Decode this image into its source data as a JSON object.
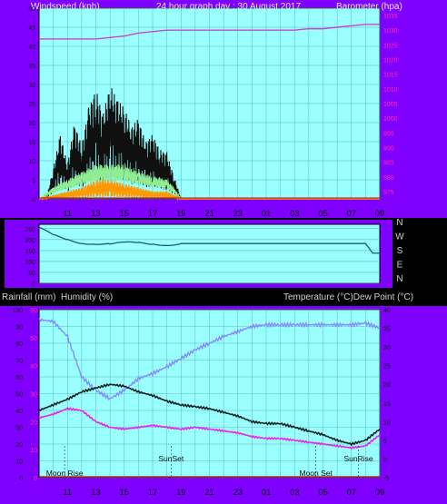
{
  "colors": {
    "frame": "#8000ff",
    "plot_bg": "#99ffff",
    "grid": "#60b8b8",
    "wind_gust": "#101010",
    "wind_avg": "#90ee90",
    "wind_low": "#ff9900",
    "barometer": "#cc44cc",
    "direction": "#1a5a7a",
    "temperature": "#102020",
    "dewpoint": "#ee22ee",
    "humidity": "#8888ff",
    "rain": "#cc0000"
  },
  "header": {
    "left": "Windspeed (kph)",
    "center": "24 hour graph day : 30 August 2017",
    "right": "Barometer (hpa)"
  },
  "section_labels": {
    "rain": "Rainfall (mm)",
    "humidity": "Humidity (%)",
    "temperature": "Temperature (°C)Dew Point (°C)"
  },
  "annotations": {
    "moon_rise": "Moon Rise",
    "sunset": "SunSet",
    "moon_set": "Moon Set",
    "sunrise": "SunRise"
  },
  "chart_data": [
    {
      "type": "line",
      "title": "24 hour graph day : 30 August 2017",
      "ylabel": "Windspeed (kph)",
      "ylabel_right": "Barometer (hpa)",
      "x_tick_labels": [
        "11",
        "13",
        "15",
        "17",
        "19",
        "21",
        "23",
        "01",
        "03",
        "05",
        "07",
        "09"
      ],
      "y_ticks": [
        "0",
        "5",
        "10",
        "15",
        "20",
        "25",
        "30",
        "35",
        "40",
        "45",
        "50"
      ],
      "y2_ticks": [
        "975",
        "980",
        "985",
        "990",
        "995",
        "1000",
        "1005",
        "1010",
        "1015",
        "1020",
        "1025",
        "1030",
        "1035"
      ],
      "ylim": [
        0,
        50
      ],
      "y2lim": [
        972.5,
        1037.5
      ],
      "grid": true,
      "x_hours": [
        9,
        10,
        11,
        12,
        13,
        14,
        15,
        16,
        17,
        18,
        19,
        20,
        21,
        22,
        23,
        24,
        25,
        26,
        27,
        28,
        29,
        30,
        31,
        32,
        33
      ],
      "series": [
        {
          "name": "Barometer",
          "axis": "right",
          "values": [
            1027,
            1027,
            1027,
            1027,
            1027,
            1027.5,
            1028,
            1029,
            1029.5,
            1030,
            1030,
            1030,
            1030,
            1030,
            1030,
            1030,
            1030,
            1030,
            1030,
            1030.5,
            1030.5,
            1031,
            1031.5,
            1032,
            1032
          ]
        },
        {
          "name": "Wind Gust",
          "axis": "left",
          "x": [
            9,
            9.5,
            10,
            10.5,
            11,
            11.5,
            12,
            12.5,
            13,
            13.5,
            14,
            14.5,
            15,
            15.5,
            16,
            16.5,
            17,
            17.5,
            18,
            18.5,
            19,
            33
          ],
          "values": [
            0,
            0,
            8,
            17,
            9,
            20,
            14,
            24,
            29,
            22,
            30,
            26,
            24,
            19,
            21,
            15,
            17,
            13,
            12,
            6,
            0,
            0
          ]
        },
        {
          "name": "Wind Average",
          "axis": "left",
          "x": [
            9,
            10,
            11,
            12,
            13,
            14,
            15,
            16,
            17,
            18,
            18.5,
            19,
            33
          ],
          "values": [
            0,
            3,
            5,
            7,
            9,
            9,
            9,
            7,
            6,
            5,
            3,
            0,
            0
          ]
        },
        {
          "name": "Wind Low",
          "axis": "left",
          "x": [
            9,
            10,
            11,
            12,
            13,
            14,
            15,
            16,
            17,
            18,
            19,
            33
          ],
          "values": [
            0,
            1,
            2,
            3,
            5,
            5,
            4,
            3,
            2,
            2,
            0,
            0
          ]
        }
      ]
    },
    {
      "type": "line",
      "ylabel": "",
      "y_ticks": [
        "0",
        "50",
        "100",
        "150",
        "200",
        "250"
      ],
      "y2_ticks": [
        "N",
        "W",
        "S",
        "E",
        "N"
      ],
      "ylim": [
        0,
        270
      ],
      "x_hours": [
        9,
        10,
        11,
        12,
        13,
        14,
        15,
        16,
        17,
        18,
        19,
        20,
        21,
        22,
        23,
        24,
        25,
        26,
        27,
        28,
        29,
        30,
        31,
        32,
        32.5,
        33
      ],
      "series": [
        {
          "name": "Wind Direction",
          "values": [
            250,
            215,
            200,
            190,
            185,
            178,
            180,
            182,
            183,
            182,
            182,
            182,
            182,
            182,
            182,
            182,
            182,
            182,
            182,
            182,
            182,
            182,
            182,
            182,
            138,
            138
          ]
        }
      ]
    },
    {
      "type": "line",
      "ylabel": "Humidity (%)",
      "ylabel_right": "Temperature (°C)Dew Point (°C)",
      "x_tick_labels": [
        "11",
        "13",
        "15",
        "17",
        "19",
        "21",
        "23",
        "01",
        "03",
        "05",
        "07",
        "09"
      ],
      "y_ticks": [
        "0",
        "10",
        "20",
        "30",
        "40",
        "50",
        "60",
        "70",
        "80",
        "90",
        "100"
      ],
      "rain_ticks": [
        "0",
        "10",
        "20",
        "30",
        "40",
        "50",
        "60"
      ],
      "y2_ticks": [
        "-5",
        "0",
        "5",
        "10",
        "15",
        "20",
        "25",
        "30",
        "35",
        "40"
      ],
      "ylim": [
        0,
        100
      ],
      "y2lim": [
        -5,
        40
      ],
      "grid": true,
      "x_hours": [
        9,
        10,
        11,
        12,
        13,
        14,
        15,
        16,
        17,
        18,
        19,
        20,
        21,
        22,
        23,
        24,
        25,
        26,
        27,
        28,
        29,
        30,
        31,
        32,
        33
      ],
      "series": [
        {
          "name": "Humidity",
          "axis": "left",
          "values": [
            94,
            93,
            84,
            60,
            52,
            47,
            52,
            59,
            62,
            66,
            71,
            76,
            80,
            84,
            87,
            90,
            91,
            91,
            91,
            91,
            91,
            91,
            91,
            92,
            89
          ]
        },
        {
          "name": "Temperature",
          "axis": "right",
          "values": [
            13,
            14.5,
            16,
            18,
            19,
            20,
            19.5,
            18,
            17,
            15.5,
            14.5,
            14,
            13.5,
            12.5,
            11.5,
            10,
            9.5,
            9.5,
            8.5,
            7.5,
            6.5,
            5,
            4,
            5,
            8
          ]
        },
        {
          "name": "Dew Point",
          "axis": "right",
          "values": [
            11,
            12,
            13.5,
            13,
            10,
            8.5,
            8,
            8.5,
            9,
            8.5,
            8,
            8.5,
            8,
            7.5,
            7,
            6,
            5.5,
            5.5,
            5,
            4.5,
            4,
            3.5,
            3,
            3.5,
            6.5
          ]
        },
        {
          "name": "Rainfall",
          "axis": "rain",
          "values": [
            0,
            0,
            0,
            0,
            0,
            0,
            0,
            0,
            0,
            0,
            0,
            0,
            0,
            0,
            0,
            0,
            0,
            0,
            0,
            0,
            0,
            0,
            0,
            0,
            0
          ]
        }
      ]
    }
  ]
}
